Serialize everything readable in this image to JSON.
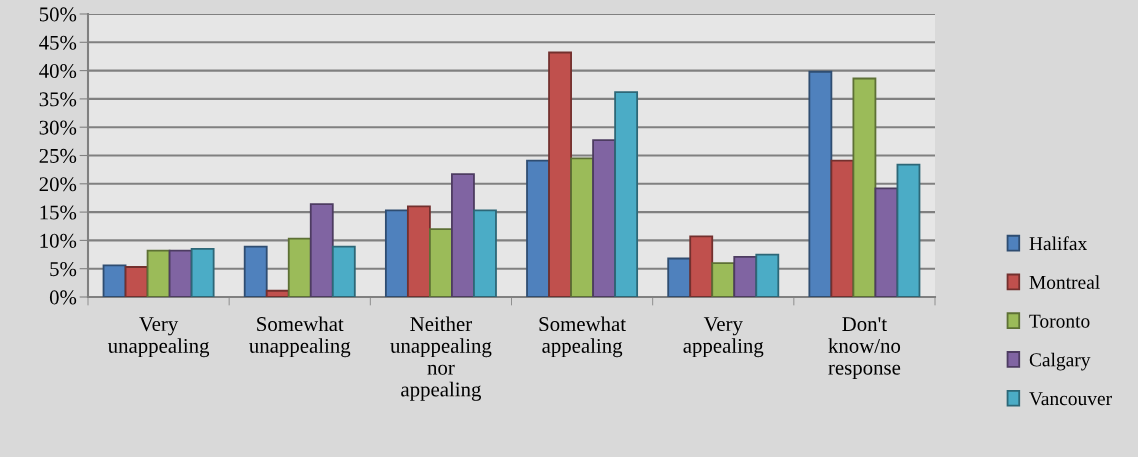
{
  "chart_data": {
    "type": "bar",
    "categories": [
      "Very\nunappealing",
      "Somewhat\nunappealing",
      "Neither\nunappealing\nnor\nappealing",
      "Somewhat\nappealing",
      "Very\nappealing",
      "Don't\nknow/no\nresponse"
    ],
    "series": [
      {
        "name": "Halifax",
        "color": "#4f81bd",
        "values": [
          5.6,
          8.9,
          15.3,
          24.1,
          6.8,
          39.8
        ]
      },
      {
        "name": "Montreal",
        "color": "#c0504d",
        "values": [
          5.3,
          1.1,
          16.0,
          43.2,
          10.7,
          24.1
        ]
      },
      {
        "name": "Toronto",
        "color": "#9bbb59",
        "values": [
          8.2,
          10.3,
          12.0,
          24.5,
          6.0,
          38.6
        ]
      },
      {
        "name": "Calgary",
        "color": "#8064a2",
        "values": [
          8.2,
          16.4,
          21.7,
          27.7,
          7.1,
          19.2
        ]
      },
      {
        "name": "Vancouver",
        "color": "#4bacc6",
        "values": [
          8.5,
          8.9,
          15.3,
          36.2,
          7.5,
          23.4
        ]
      }
    ],
    "ylim": [
      0,
      50
    ],
    "yticks": [
      {
        "value": 0,
        "label": "0%"
      },
      {
        "value": 5,
        "label": "5%"
      },
      {
        "value": 10,
        "label": "10%"
      },
      {
        "value": 15,
        "label": "15%"
      },
      {
        "value": 20,
        "label": "20%"
      },
      {
        "value": 25,
        "label": "25%"
      },
      {
        "value": 30,
        "label": "30%"
      },
      {
        "value": 35,
        "label": "35%"
      },
      {
        "value": 40,
        "label": "40%"
      },
      {
        "value": 45,
        "label": "45%"
      },
      {
        "value": 50,
        "label": "50%"
      }
    ],
    "grid": "y",
    "legend": "right"
  }
}
